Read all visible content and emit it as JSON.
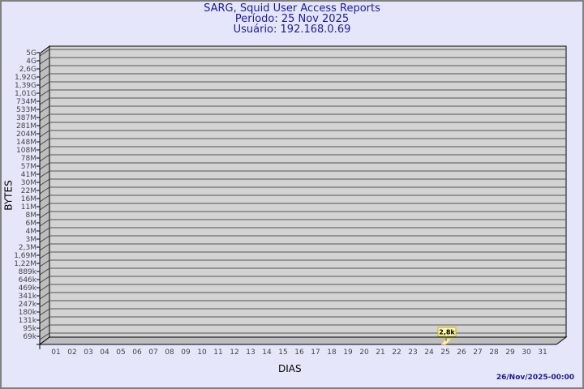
{
  "header": {
    "title": "SARG, Squid User Access Reports",
    "period": "Período: 25 Nov 2025",
    "user": "Usuário: 192.168.0.69"
  },
  "footer": {
    "timestamp": "26/Nov/2025-00:00"
  },
  "chart_data": {
    "type": "bar",
    "xlabel": "DIAS",
    "ylabel": "BYTES",
    "y_scale": "log",
    "y_ticks": [
      "5G",
      "4G",
      "2,6G",
      "1,92G",
      "1,39G",
      "1,01G",
      "734M",
      "533M",
      "387M",
      "281M",
      "204M",
      "148M",
      "108M",
      "78M",
      "57M",
      "41M",
      "30M",
      "22M",
      "16M",
      "11M",
      "8M",
      "6M",
      "4M",
      "3M",
      "2,3M",
      "1,69M",
      "1,22M",
      "889k",
      "646k",
      "469k",
      "341k",
      "247k",
      "180k",
      "131k",
      "95k",
      "69k"
    ],
    "categories": [
      "01",
      "02",
      "03",
      "04",
      "05",
      "06",
      "07",
      "08",
      "09",
      "10",
      "11",
      "12",
      "13",
      "14",
      "15",
      "16",
      "17",
      "18",
      "19",
      "20",
      "21",
      "22",
      "23",
      "24",
      "25",
      "26",
      "27",
      "28",
      "29",
      "30",
      "31"
    ],
    "values": [
      0,
      0,
      0,
      0,
      0,
      0,
      0,
      0,
      0,
      0,
      0,
      0,
      0,
      0,
      0,
      0,
      0,
      0,
      0,
      0,
      0,
      0,
      0,
      0,
      2800,
      0,
      0,
      0,
      0,
      0,
      0
    ],
    "data_labels": {
      "25": "2,8k"
    },
    "grid": true,
    "colors": {
      "wall": "#d3d3d3",
      "side": "#bebebe",
      "bar": "#fff0a0",
      "label_bg": "#fff8b0",
      "label_border": "#c8b400"
    }
  }
}
